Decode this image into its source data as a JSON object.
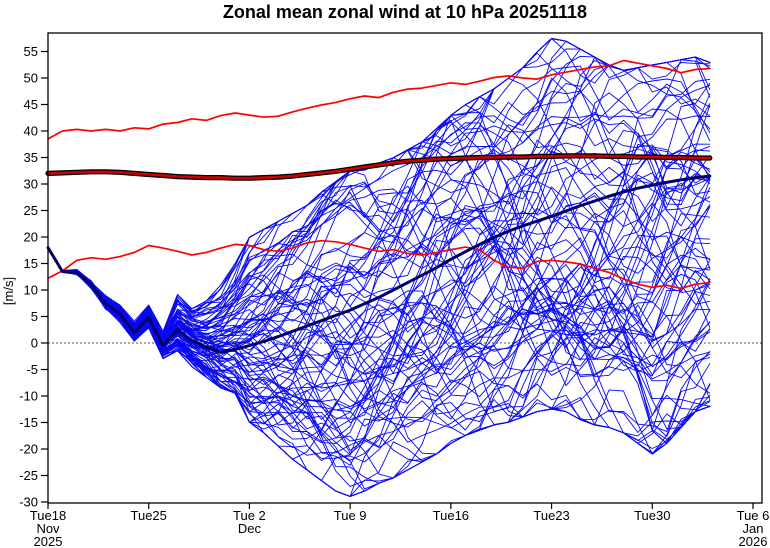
{
  "title": "Zonal mean zonal wind at 10 hPa 20251118",
  "y_axis": {
    "label": "[m/s]",
    "min": -30,
    "max": 55,
    "tick_step": 5,
    "ticks": [
      -30,
      -25,
      -20,
      -15,
      -10,
      -5,
      0,
      5,
      10,
      15,
      20,
      25,
      30,
      35,
      40,
      45,
      50,
      55
    ]
  },
  "x_axis": {
    "range_days": [
      0,
      49
    ],
    "ticks": [
      {
        "day": 0,
        "label": "Tue18",
        "sub": [
          "Nov",
          "2025"
        ]
      },
      {
        "day": 7,
        "label": "Tue25",
        "sub": []
      },
      {
        "day": 14,
        "label": "Tue 2",
        "sub": [
          "Dec"
        ]
      },
      {
        "day": 21,
        "label": "Tue 9",
        "sub": []
      },
      {
        "day": 28,
        "label": "Tue16",
        "sub": []
      },
      {
        "day": 35,
        "label": "Tue23",
        "sub": []
      },
      {
        "day": 42,
        "label": "Tue30",
        "sub": []
      },
      {
        "day": 49,
        "label": "Tue 6",
        "sub": [
          "Jan",
          "2026"
        ]
      }
    ]
  },
  "chart_data": {
    "type": "line",
    "title": "Zonal mean zonal wind at 10 hPa 20251118",
    "ylabel": "[m/s]",
    "ylim": [
      -30,
      55
    ],
    "x_unit": "days from 2025-11-18",
    "forecast_length_days": 46,
    "grid": false,
    "zero_line": {
      "value": 0,
      "style": "dashed",
      "color": "#555555"
    },
    "style": {
      "ensemble_color": "#0808f2",
      "median_color": "#000066",
      "climate_mean_color": "#cc0000",
      "climate_mean_outline": "#000000",
      "climate_percentile_color": "#ff0000",
      "frame_color": "#000000"
    },
    "series": [
      {
        "name": "ensemble-median-control",
        "color": "#000066",
        "width": 3,
        "day_step": 1,
        "values": [
          18.0,
          13.5,
          13.3,
          11.0,
          7.5,
          5.5,
          2.0,
          4.8,
          -0.5,
          2.5,
          0.5,
          -0.8,
          -1.8,
          -1.2,
          -0.5,
          0.3,
          1.2,
          2.2,
          3.2,
          4.2,
          5.2,
          6.2,
          7.4,
          8.6,
          10.0,
          11.4,
          12.8,
          14.2,
          15.8,
          17.2,
          18.6,
          19.9,
          21.1,
          22.1,
          23.0,
          23.9,
          24.9,
          25.9,
          26.8,
          27.7,
          28.5,
          29.2,
          29.8,
          30.3,
          30.8,
          31.2,
          31.5
        ]
      },
      {
        "name": "climate-mean",
        "color": "#cc0000",
        "width": 3,
        "outlined": true,
        "day_step": 1,
        "values": [
          32.0,
          32.1,
          32.2,
          32.3,
          32.3,
          32.2,
          32.0,
          31.8,
          31.6,
          31.4,
          31.3,
          31.2,
          31.2,
          31.1,
          31.1,
          31.2,
          31.3,
          31.5,
          31.8,
          32.1,
          32.4,
          32.8,
          33.2,
          33.6,
          34.0,
          34.3,
          34.5,
          34.7,
          34.8,
          34.9,
          35.0,
          35.0,
          35.1,
          35.1,
          35.2,
          35.2,
          35.3,
          35.3,
          35.3,
          35.2,
          35.2,
          35.1,
          35.1,
          35.0,
          35.0,
          34.9,
          34.9
        ]
      },
      {
        "name": "climate-upper-percentile",
        "color": "#ff0000",
        "width": 1.7,
        "day_step": 1,
        "values": [
          38.5,
          40.0,
          40.3,
          40.0,
          40.3,
          40.0,
          40.6,
          40.4,
          41.3,
          41.6,
          42.3,
          42.0,
          42.9,
          43.4,
          43.0,
          42.6,
          42.8,
          43.6,
          44.3,
          44.9,
          45.4,
          46.1,
          46.6,
          46.3,
          47.3,
          47.9,
          48.1,
          48.6,
          49.1,
          48.8,
          49.4,
          50.1,
          50.4,
          50.0,
          49.8,
          50.6,
          51.1,
          51.6,
          52.1,
          52.3,
          53.3,
          52.8,
          52.3,
          51.8,
          51.0,
          51.6,
          51.8
        ]
      },
      {
        "name": "climate-lower-percentile",
        "color": "#ff0000",
        "width": 1.7,
        "day_step": 1,
        "values": [
          12.2,
          13.6,
          15.6,
          16.1,
          15.8,
          16.3,
          17.1,
          18.4,
          17.9,
          17.3,
          16.6,
          17.1,
          17.9,
          18.6,
          18.4,
          17.6,
          17.3,
          17.9,
          18.9,
          19.3,
          19.1,
          18.6,
          17.9,
          17.3,
          17.6,
          16.9,
          16.6,
          17.1,
          17.6,
          18.1,
          17.6,
          15.6,
          14.3,
          14.1,
          15.4,
          15.6,
          15.3,
          14.9,
          14.1,
          13.3,
          12.1,
          11.1,
          10.5,
          10.9,
          10.3,
          11.1,
          11.4
        ]
      }
    ],
    "ensemble": {
      "name": "ensemble-members",
      "color": "#0808f2",
      "width": 0.9,
      "count": 100,
      "seed": 1337,
      "day_step": 1,
      "start_value": 18.0,
      "envelope_min": [
        18,
        13.2,
        12.8,
        10.2,
        6.3,
        3.8,
        0.3,
        2.8,
        -3.0,
        -1.5,
        -4.5,
        -6.5,
        -8.5,
        -9.5,
        -15,
        -17,
        -19.5,
        -22,
        -24,
        -26,
        -28,
        -29,
        -28,
        -26.5,
        -25.5,
        -24,
        -22.5,
        -21,
        -19,
        -17.5,
        -16.5,
        -15.5,
        -15,
        -14,
        -13,
        -12.5,
        -13,
        -14.5,
        -15.5,
        -16,
        -17,
        -19,
        -21,
        -19,
        -16,
        -13,
        -12
      ],
      "envelope_max": [
        18,
        13.9,
        14.0,
        12.0,
        9.0,
        7.2,
        4.2,
        7.2,
        2.2,
        9.2,
        6.5,
        8,
        11,
        15,
        20,
        21.5,
        23,
        24.5,
        26,
        28.5,
        30.5,
        32.5,
        33,
        34,
        35,
        36.5,
        38,
        40.5,
        43,
        45,
        46.5,
        48,
        50,
        52,
        55,
        57.5,
        57,
        55.5,
        54,
        52.5,
        51.5,
        52,
        52.5,
        53,
        53.5,
        54,
        53
      ]
    }
  }
}
